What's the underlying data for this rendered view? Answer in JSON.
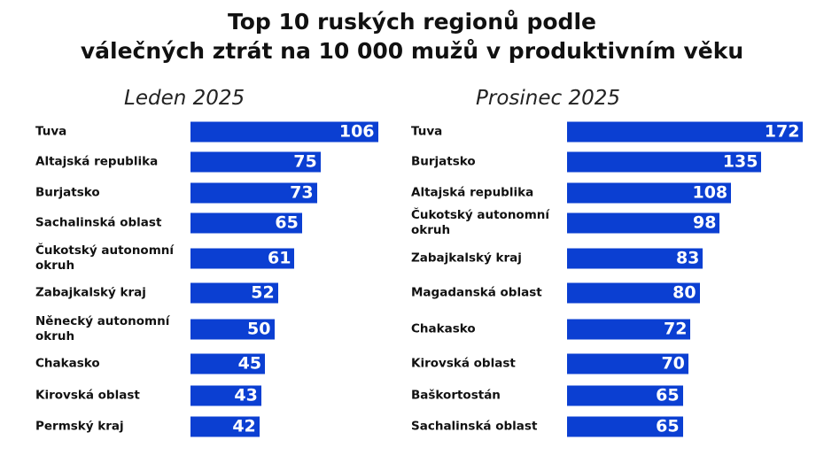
{
  "title": [
    "Top 10 ruských regionů podle",
    "válečných ztrát na 10 000 mužů v produktivním věku"
  ],
  "chart_data": [
    {
      "type": "bar",
      "orientation": "horizontal",
      "title": "Leden 2025",
      "color": "#0b3fd2",
      "categories": [
        "Tuva",
        "Altajská republika",
        "Burjatsko",
        "Sachalinská oblast",
        "Čukotský autonomní okruh",
        "Zabajkalský kraj",
        "Něnecký autonomní okruh",
        "Chakasko",
        "Kirovská oblast",
        "Permský kraj"
      ],
      "values": [
        106,
        75,
        73,
        65,
        61,
        52,
        50,
        45,
        43,
        42
      ]
    },
    {
      "type": "bar",
      "orientation": "horizontal",
      "title": "Prosinec 2025",
      "color": "#0b3fd2",
      "categories": [
        "Tuva",
        "Burjatsko",
        "Altajská republika",
        "Čukotský autonomní okruh",
        "Zabajkalský kraj",
        "Magadanská oblast",
        "Chakasko",
        "Kirovská oblast",
        "Baškortostán",
        "Sachalinská oblast"
      ],
      "values": [
        172,
        135,
        108,
        98,
        83,
        80,
        72,
        70,
        65,
        65
      ]
    }
  ]
}
